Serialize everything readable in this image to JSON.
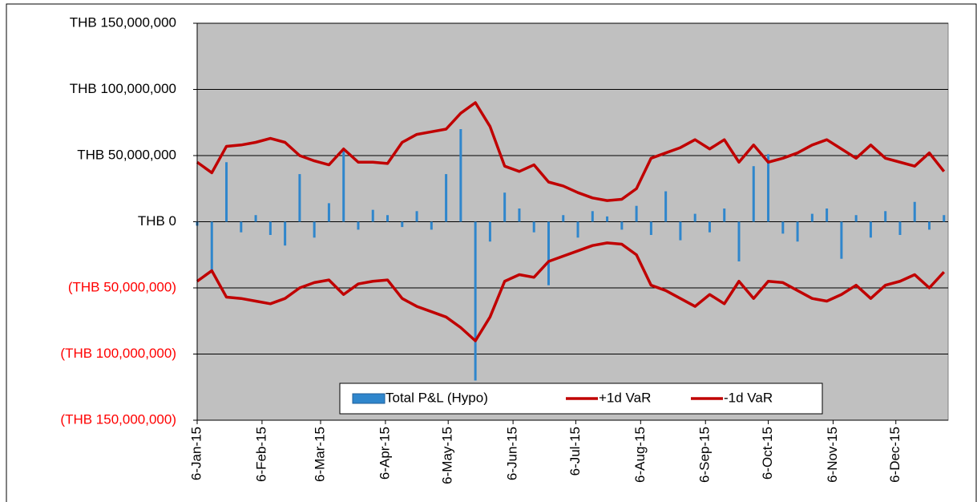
{
  "chart_data": {
    "type": "bar-line",
    "x": [
      "2015-01-06",
      "2015-01-13",
      "2015-01-20",
      "2015-01-27",
      "2015-02-03",
      "2015-02-10",
      "2015-02-17",
      "2015-02-24",
      "2015-03-03",
      "2015-03-10",
      "2015-03-17",
      "2015-03-24",
      "2015-03-31",
      "2015-04-07",
      "2015-04-14",
      "2015-04-21",
      "2015-04-28",
      "2015-05-05",
      "2015-05-12",
      "2015-05-19",
      "2015-05-26",
      "2015-06-02",
      "2015-06-09",
      "2015-06-16",
      "2015-06-23",
      "2015-06-30",
      "2015-07-07",
      "2015-07-14",
      "2015-07-21",
      "2015-07-28",
      "2015-08-04",
      "2015-08-11",
      "2015-08-18",
      "2015-08-25",
      "2015-09-01",
      "2015-09-08",
      "2015-09-15",
      "2015-09-22",
      "2015-09-29",
      "2015-10-06",
      "2015-10-13",
      "2015-10-20",
      "2015-10-27",
      "2015-11-03",
      "2015-11-10",
      "2015-11-17",
      "2015-11-24",
      "2015-12-01",
      "2015-12-08",
      "2015-12-15",
      "2015-12-22",
      "2015-12-29"
    ],
    "series": [
      {
        "name": "Total P&L (Hypo)",
        "kind": "bar",
        "color": "#2f86cc",
        "values": [
          -3000000,
          -38000000,
          45000000,
          -8000000,
          5000000,
          -10000000,
          -18000000,
          36000000,
          -12000000,
          14000000,
          55000000,
          -6000000,
          9000000,
          5000000,
          -4000000,
          8000000,
          -6000000,
          36000000,
          70000000,
          -120000000,
          -15000000,
          22000000,
          10000000,
          -8000000,
          -48000000,
          5000000,
          -12000000,
          8000000,
          4000000,
          -6000000,
          12000000,
          -10000000,
          23000000,
          -14000000,
          6000000,
          -8000000,
          10000000,
          -30000000,
          42000000,
          51000000,
          -9000000,
          -15000000,
          6000000,
          10000000,
          -28000000,
          5000000,
          -12000000,
          8000000,
          -10000000,
          15000000,
          -6000000,
          5000000
        ]
      },
      {
        "name": "+1d VaR",
        "kind": "line",
        "color": "#c00000",
        "values": [
          45000000,
          37000000,
          57000000,
          58000000,
          60000000,
          63000000,
          60000000,
          50000000,
          46000000,
          43000000,
          55000000,
          45000000,
          45000000,
          44000000,
          60000000,
          66000000,
          68000000,
          70000000,
          82000000,
          90000000,
          72000000,
          42000000,
          38000000,
          43000000,
          30000000,
          27000000,
          22000000,
          18000000,
          16000000,
          17000000,
          25000000,
          48000000,
          52000000,
          56000000,
          62000000,
          55000000,
          62000000,
          45000000,
          58000000,
          45000000,
          48000000,
          52000000,
          58000000,
          62000000,
          55000000,
          48000000,
          58000000,
          48000000,
          45000000,
          42000000,
          52000000,
          38000000
        ]
      },
      {
        "name": "-1d VaR",
        "kind": "line",
        "color": "#c00000",
        "values": [
          -45000000,
          -37000000,
          -57000000,
          -58000000,
          -60000000,
          -62000000,
          -58000000,
          -50000000,
          -46000000,
          -44000000,
          -55000000,
          -47000000,
          -45000000,
          -44000000,
          -58000000,
          -64000000,
          -68000000,
          -72000000,
          -80000000,
          -90000000,
          -72000000,
          -45000000,
          -40000000,
          -42000000,
          -30000000,
          -26000000,
          -22000000,
          -18000000,
          -16000000,
          -17000000,
          -25000000,
          -48000000,
          -52000000,
          -58000000,
          -64000000,
          -55000000,
          -62000000,
          -45000000,
          -58000000,
          -45000000,
          -46000000,
          -52000000,
          -58000000,
          -60000000,
          -55000000,
          -48000000,
          -58000000,
          -48000000,
          -45000000,
          -40000000,
          -50000000,
          -38000000
        ]
      }
    ],
    "xlim": [
      "2015-01-06",
      "2015-12-31"
    ],
    "xticks": [
      {
        "value": "2015-01-06",
        "label": "6-Jan-15"
      },
      {
        "value": "2015-02-06",
        "label": "6-Feb-15"
      },
      {
        "value": "2015-03-06",
        "label": "6-Mar-15"
      },
      {
        "value": "2015-04-06",
        "label": "6-Apr-15"
      },
      {
        "value": "2015-05-06",
        "label": "6-May-15"
      },
      {
        "value": "2015-06-06",
        "label": "6-Jun-15"
      },
      {
        "value": "2015-07-06",
        "label": "6-Jul-15"
      },
      {
        "value": "2015-08-06",
        "label": "6-Aug-15"
      },
      {
        "value": "2015-09-06",
        "label": "6-Sep-15"
      },
      {
        "value": "2015-10-06",
        "label": "6-Oct-15"
      },
      {
        "value": "2015-11-06",
        "label": "6-Nov-15"
      },
      {
        "value": "2015-12-06",
        "label": "6-Dec-15"
      }
    ],
    "ylim": [
      -150000000,
      150000000
    ],
    "yticks": [
      {
        "value": -150000000,
        "label": "(THB 150,000,000)"
      },
      {
        "value": -100000000,
        "label": "(THB 100,000,000)"
      },
      {
        "value": -50000000,
        "label": "(THB 50,000,000)"
      },
      {
        "value": 0,
        "label": "THB 0"
      },
      {
        "value": 50000000,
        "label": "THB 50,000,000"
      },
      {
        "value": 100000000,
        "label": "THB 100,000,000"
      },
      {
        "value": 150000000,
        "label": "THB 150,000,000"
      }
    ],
    "grid": true,
    "legend": "bottom",
    "negative_tick_color": "#ff0000",
    "plot_background": "#c0c0c0"
  }
}
